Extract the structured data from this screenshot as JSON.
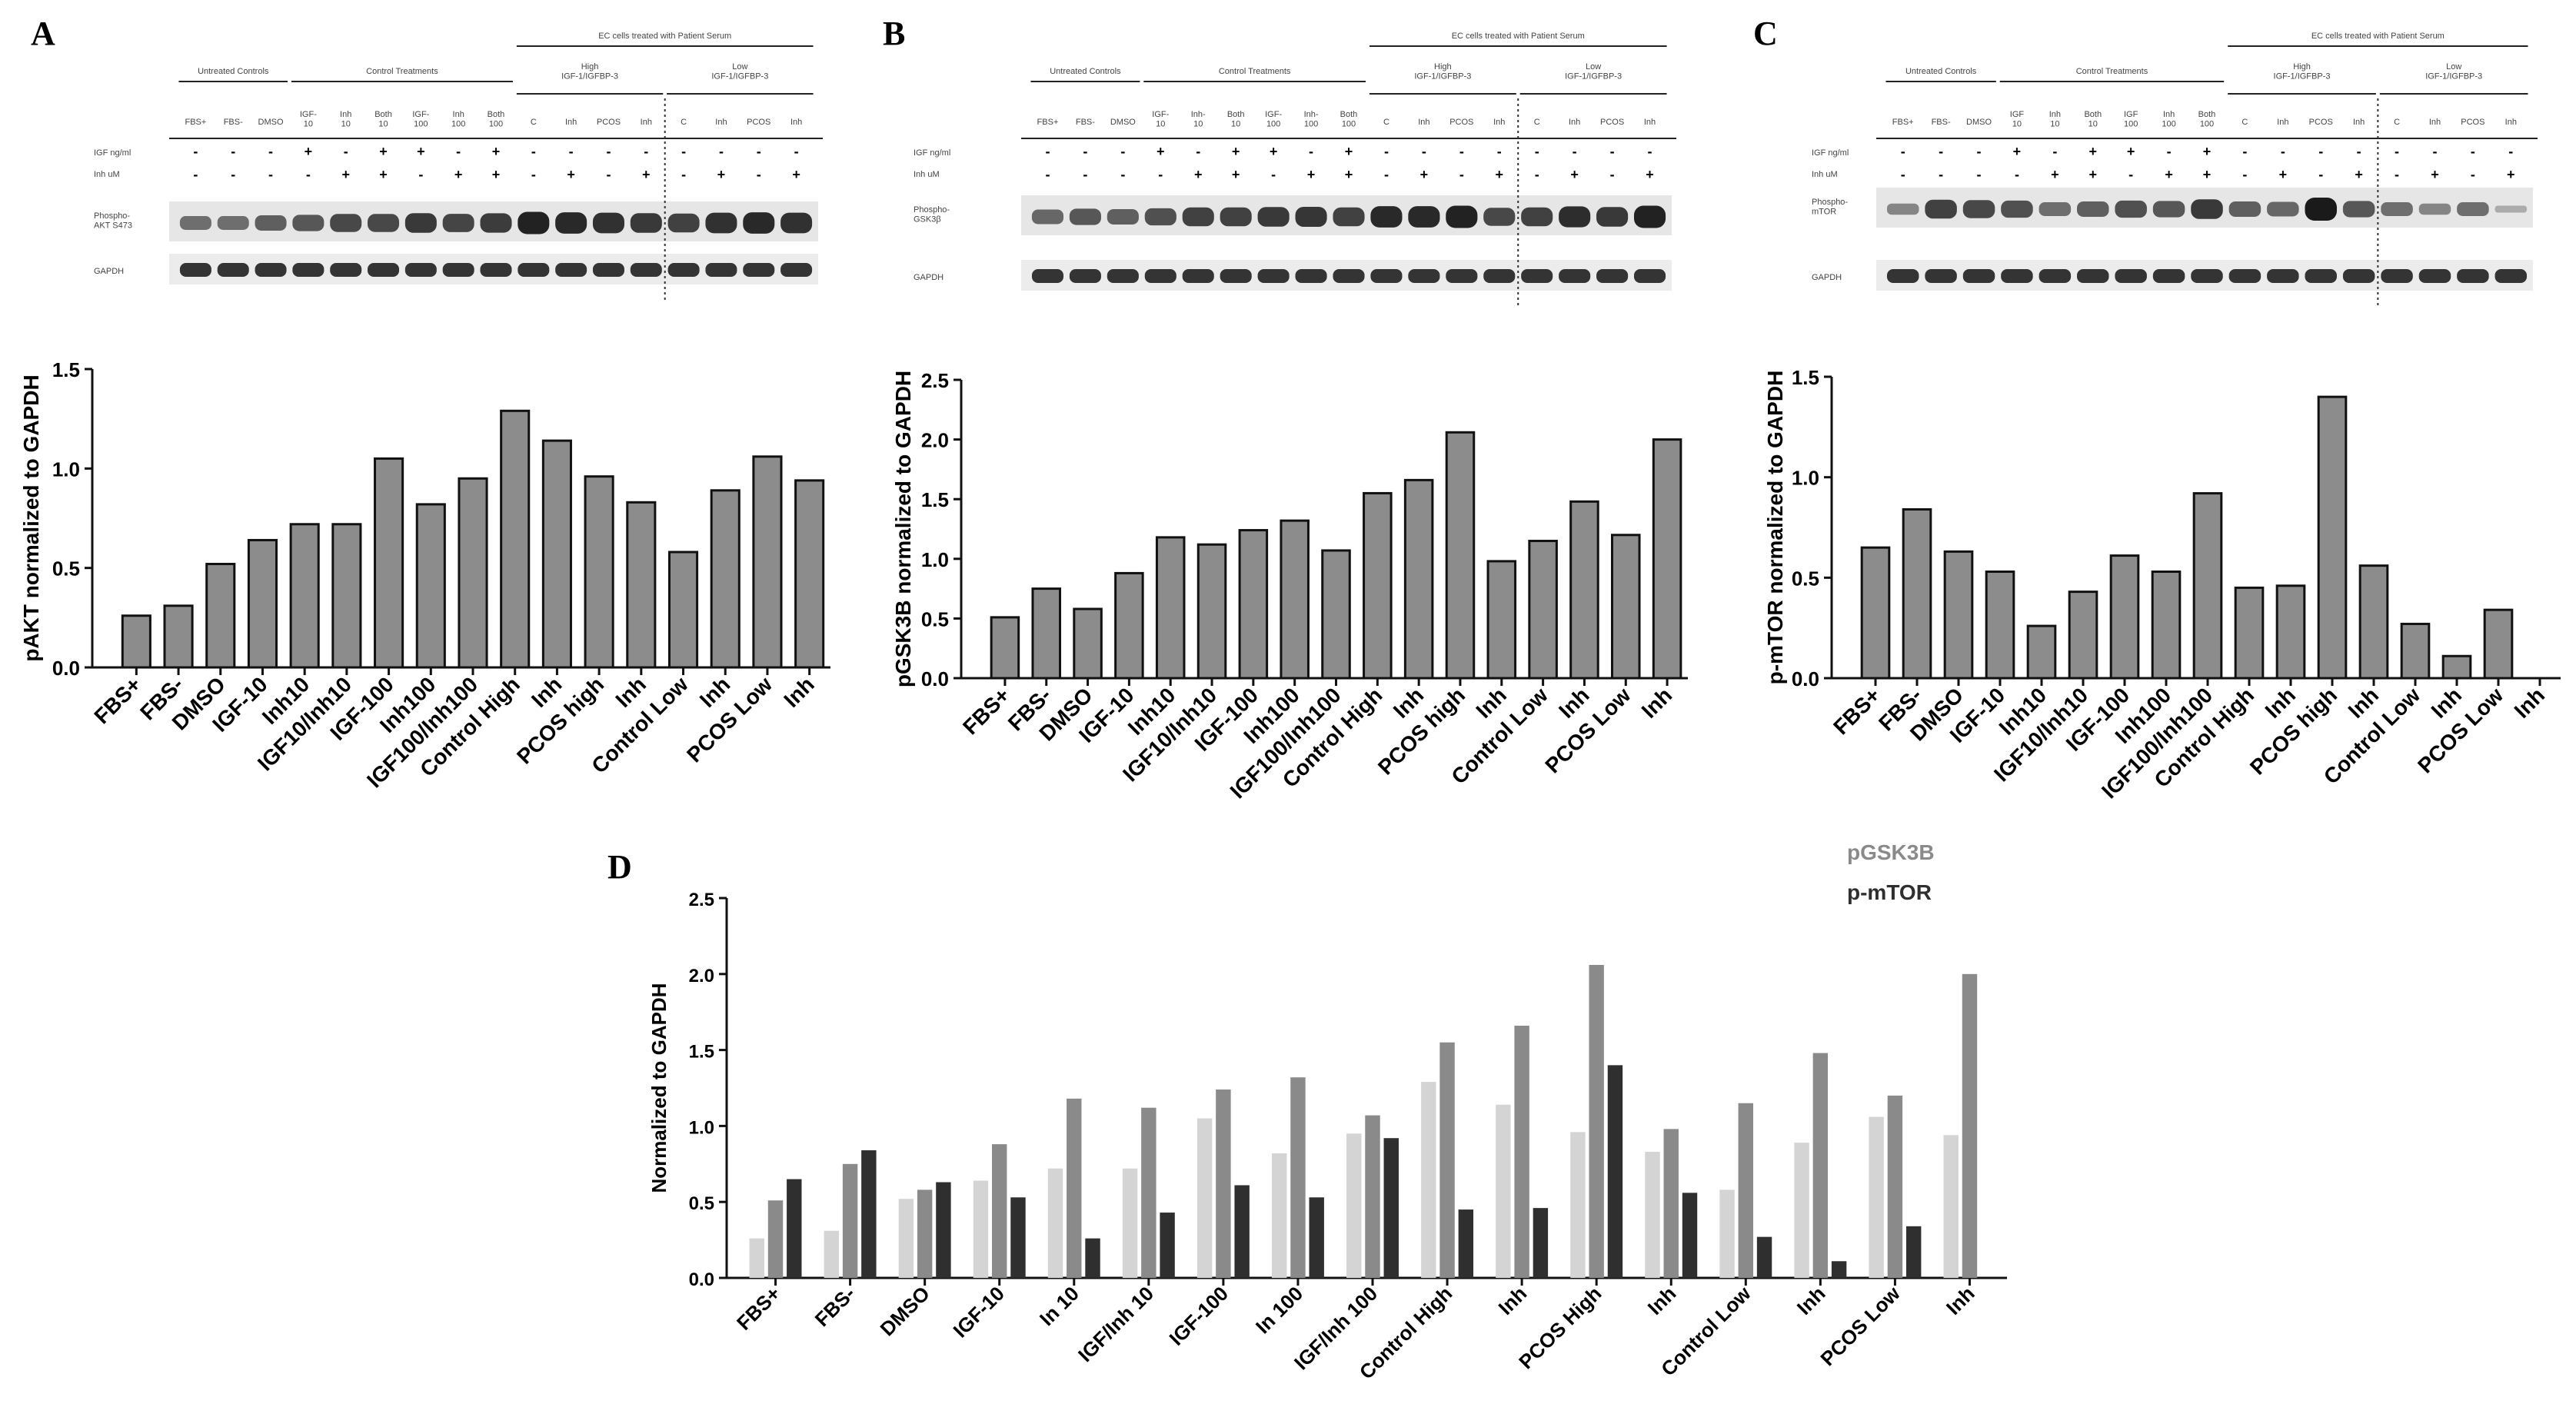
{
  "panels": {
    "A": {
      "label": "A",
      "blot": {
        "group_headers": [
          "Untreated Controls",
          "Control Treatments",
          "EC cells treated with Patient Serum"
        ],
        "sub_headers": [
          "High\nIGF-1/IGFBP-3",
          "Low\nIGF-1/IGFBP-3"
        ],
        "lanes": [
          "FBS+",
          "FBS-",
          "DMSO",
          "IGF-\n10",
          "Inh\n10",
          "Both\n10",
          "IGF-\n100",
          "Inh\n100",
          "Both\n100",
          "C",
          "Inh",
          "PCOS",
          "Inh",
          "C",
          "Inh",
          "PCOS",
          "Inh"
        ],
        "row_labels": [
          "IGF ng/ml",
          "Inh uM"
        ],
        "igf_row": [
          "-",
          "-",
          "-",
          "+",
          "-",
          "+",
          "+",
          "-",
          "+",
          "-",
          "-",
          "-",
          "-",
          "-",
          "-",
          "-",
          "-"
        ],
        "inh_row": [
          "-",
          "-",
          "-",
          "-",
          "+",
          "+",
          "-",
          "+",
          "+",
          "-",
          "+",
          "-",
          "+",
          "-",
          "+",
          "-",
          "+"
        ],
        "band_labels": [
          "Phospho-\nAKT S473",
          "GAPDH"
        ]
      }
    },
    "B": {
      "label": "B",
      "blot": {
        "group_headers": [
          "Untreated Controls",
          "Control Treatments",
          "EC cells treated with Patient Serum"
        ],
        "sub_headers": [
          "High\nIGF-1/IGFBP-3",
          "Low\nIGF-1/IGFBP-3"
        ],
        "lanes": [
          "FBS+",
          "FBS-",
          "DMSO",
          "IGF-\n10",
          "Inh-\n10",
          "Both\n10",
          "IGF-\n100",
          "Inh-\n100",
          "Both\n100",
          "C",
          "Inh",
          "PCOS",
          "Inh",
          "C",
          "Inh",
          "PCOS",
          "Inh"
        ],
        "row_labels": [
          "IGF ng/ml",
          "Inh uM"
        ],
        "igf_row": [
          "-",
          "-",
          "-",
          "+",
          "-",
          "+",
          "+",
          "-",
          "+",
          "-",
          "-",
          "-",
          "-",
          "-",
          "-",
          "-",
          "-"
        ],
        "inh_row": [
          "-",
          "-",
          "-",
          "-",
          "+",
          "+",
          "-",
          "+",
          "+",
          "-",
          "+",
          "-",
          "+",
          "-",
          "+",
          "-",
          "+"
        ],
        "band_labels": [
          "Phospho-\nGSK3β",
          "GAPDH"
        ]
      }
    },
    "C": {
      "label": "C",
      "blot": {
        "group_headers": [
          "Untreated Controls",
          "Control Treatments",
          "EC cells treated with Patient Serum"
        ],
        "sub_headers": [
          "High\nIGF-1/IGFBP-3",
          "Low\nIGF-1/IGFBP-3"
        ],
        "lanes": [
          "FBS+",
          "FBS-",
          "DMSO",
          "IGF\n10",
          "Inh\n10",
          "Both\n10",
          "IGF\n100",
          "Inh\n100",
          "Both\n100",
          "C",
          "Inh",
          "PCOS",
          "Inh",
          "C",
          "Inh",
          "PCOS",
          "Inh"
        ],
        "row_labels": [
          "IGF ng/ml",
          "Inh uM"
        ],
        "igf_row": [
          "-",
          "-",
          "-",
          "+",
          "-",
          "+",
          "+",
          "-",
          "+",
          "-",
          "-",
          "-",
          "-",
          "-",
          "-",
          "-",
          "-"
        ],
        "inh_row": [
          "-",
          "-",
          "-",
          "-",
          "+",
          "+",
          "-",
          "+",
          "+",
          "-",
          "+",
          "-",
          "+",
          "-",
          "+",
          "-",
          "+"
        ],
        "band_labels": [
          "Phospho-\nmTOR",
          "GAPDH"
        ]
      }
    },
    "D": {
      "label": "D"
    }
  },
  "colors": {
    "bar_fill": "#8c8c8c",
    "pakt": "#d4d4d4",
    "pgsk": "#8a8a8a",
    "pmtor": "#2f2f2f",
    "band": "#1a1a1a",
    "axis": "#111111"
  },
  "chart_data": [
    {
      "id": "A",
      "type": "bar",
      "ylabel": "pAKT normalized to GAPDH",
      "ylim": [
        0,
        1.5
      ],
      "yticks": [
        0.0,
        0.5,
        1.0,
        1.5
      ],
      "categories": [
        "FBS+",
        "FBS-",
        "DMSO",
        "IGF-10",
        "Inh10",
        "IGF10/Inh10",
        "IGF-100",
        "Inh100",
        "IGF100/Inh100",
        "Control High",
        "Inh",
        "PCOS high",
        "Inh",
        "Control Low",
        "Inh",
        "PCOS Low",
        "Inh"
      ],
      "values": [
        0.26,
        0.31,
        0.52,
        0.64,
        0.72,
        0.72,
        1.05,
        0.82,
        0.95,
        1.29,
        1.14,
        0.96,
        0.83,
        0.58,
        0.89,
        1.06,
        0.94
      ]
    },
    {
      "id": "B",
      "type": "bar",
      "ylabel": "pGSK3B normalized to GAPDH",
      "ylim": [
        0,
        2.5
      ],
      "yticks": [
        0.0,
        0.5,
        1.0,
        1.5,
        2.0,
        2.5
      ],
      "categories": [
        "FBS+",
        "FBS-",
        "DMSO",
        "IGF-10",
        "Inh10",
        "IGF10/Inh10",
        "IGF-100",
        "Inh100",
        "IGF100/Inh100",
        "Control High",
        "Inh",
        "PCOS high",
        "Inh",
        "Control Low",
        "Inh",
        "PCOS Low",
        "Inh"
      ],
      "values": [
        0.51,
        0.75,
        0.58,
        0.88,
        1.18,
        1.12,
        1.24,
        1.32,
        1.07,
        1.55,
        1.66,
        2.06,
        0.98,
        1.15,
        1.48,
        1.2,
        2.0
      ]
    },
    {
      "id": "C",
      "type": "bar",
      "ylabel": "p-mTOR normalized to GAPDH",
      "ylim": [
        0,
        1.5
      ],
      "yticks": [
        0.0,
        0.5,
        1.0,
        1.5
      ],
      "categories": [
        "FBS+",
        "FBS-",
        "DMSO",
        "IGF-10",
        "Inh10",
        "IGF10/Inh10",
        "IGF-100",
        "Inh100",
        "IGF100/Inh100",
        "Control High",
        "Inh",
        "PCOS high",
        "Inh",
        "Control Low",
        "Inh",
        "PCOS Low",
        "Inh"
      ],
      "values": [
        0.65,
        0.84,
        0.63,
        0.53,
        0.26,
        0.43,
        0.61,
        0.53,
        0.92,
        0.45,
        0.46,
        1.4,
        0.56,
        0.27,
        0.11,
        0.34,
        0.0
      ]
    },
    {
      "id": "D",
      "type": "bar",
      "ylabel": "Normalized to GAPDH",
      "ylim": [
        0,
        2.5
      ],
      "yticks": [
        0.0,
        0.5,
        1.0,
        1.5,
        2.0,
        2.5
      ],
      "legend": {
        "placement": "top-right",
        "entries": [
          "pGSK3B",
          "p-mTOR"
        ]
      },
      "categories": [
        "FBS+",
        "FBS-",
        "DMSO",
        "IGF-10",
        "In 10",
        "IGF/Inh 10",
        "IGF-100",
        "In 100",
        "IGF/Inh 100",
        "Control High",
        "Inh",
        "PCOS High",
        "Inh",
        "Control Low",
        "Inh",
        "PCOS Low",
        "Inh"
      ],
      "series": [
        {
          "values": [
            0.26,
            0.31,
            0.52,
            0.64,
            0.72,
            0.72,
            1.05,
            0.82,
            0.95,
            1.29,
            1.14,
            0.96,
            0.83,
            0.58,
            0.89,
            1.06,
            0.94
          ]
        },
        {
          "name": "pGSK3B",
          "values": [
            0.51,
            0.75,
            0.58,
            0.88,
            1.18,
            1.12,
            1.24,
            1.32,
            1.07,
            1.55,
            1.66,
            2.06,
            0.98,
            1.15,
            1.48,
            1.2,
            2.0
          ]
        },
        {
          "name": "p-mTOR",
          "values": [
            0.65,
            0.84,
            0.63,
            0.53,
            0.26,
            0.43,
            0.61,
            0.53,
            0.92,
            0.45,
            0.46,
            1.4,
            0.56,
            0.27,
            0.11,
            0.34,
            0.0
          ]
        }
      ]
    }
  ]
}
